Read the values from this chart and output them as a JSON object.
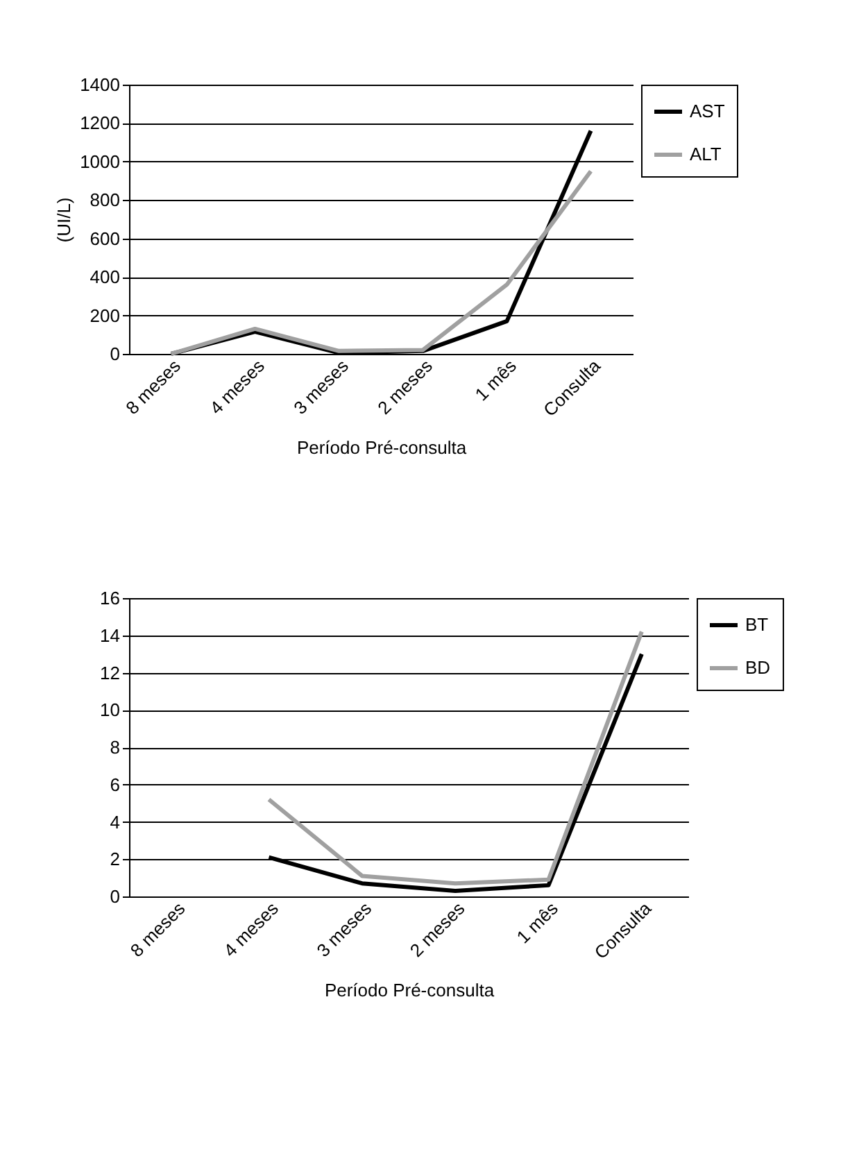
{
  "chart_data": [
    {
      "type": "line",
      "xlabel": "Período Pré-consulta",
      "ylabel": "(UI/L)",
      "categories": [
        "8 meses",
        "4 meses",
        "3 meses",
        "2 meses",
        "1 mês",
        "Consulta"
      ],
      "series": [
        {
          "name": "AST",
          "color": "#000000",
          "values": [
            0,
            115,
            5,
            15,
            170,
            1160
          ]
        },
        {
          "name": "ALT",
          "color": "#a0a0a0",
          "values": [
            0,
            130,
            15,
            20,
            360,
            950
          ]
        }
      ],
      "ylim": [
        0,
        1400
      ],
      "yticks": [
        0,
        200,
        400,
        600,
        800,
        1000,
        1200,
        1400
      ],
      "grid": "y",
      "legend": "right",
      "marker": "none"
    },
    {
      "type": "line",
      "xlabel": "Período Pré-consulta",
      "categories": [
        "8 meses",
        "4 meses",
        "3 meses",
        "2 meses",
        "1 mês",
        "Consulta"
      ],
      "series": [
        {
          "name": "BT",
          "color": "#000000",
          "values": [
            null,
            2.1,
            0.7,
            0.3,
            0.6,
            13
          ]
        },
        {
          "name": "BD",
          "color": "#a0a0a0",
          "values": [
            null,
            5.2,
            1.1,
            0.7,
            0.9,
            14.2
          ]
        }
      ],
      "ylim": [
        0,
        16
      ],
      "yticks": [
        0,
        2,
        4,
        6,
        8,
        10,
        12,
        14,
        16
      ],
      "grid": "y",
      "legend": "right",
      "marker": "none"
    }
  ]
}
